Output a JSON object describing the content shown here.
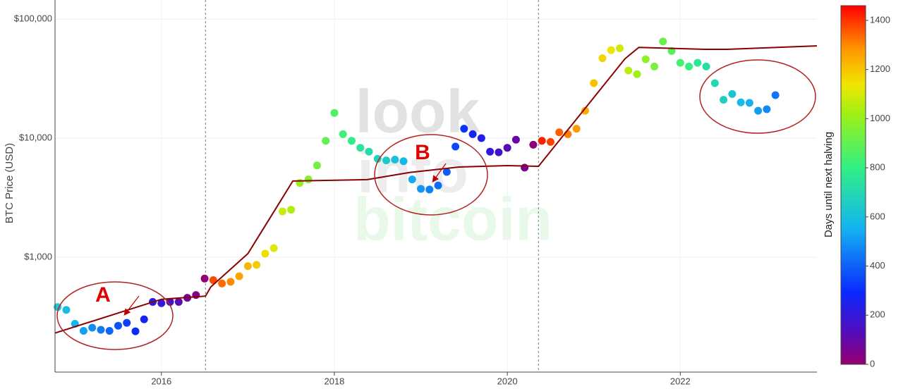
{
  "chart_data": {
    "type": "scatter",
    "y_label": "BTC Price (USD)",
    "colorbar_label": "Days until next halving",
    "watermark": [
      "look",
      "into",
      "bitcoin"
    ],
    "annotations": [
      "A",
      "B"
    ],
    "log_y": true,
    "grid": true,
    "xlim": [
      2014.77,
      2023.58
    ],
    "xticks": [
      2016,
      2018,
      2020,
      2022
    ],
    "ylim": [
      108,
      145000
    ],
    "yticks": [
      {
        "value": 1000,
        "label": "$1,000"
      },
      {
        "value": 10000,
        "label": "$10,000"
      },
      {
        "value": 100000,
        "label": "$100,000"
      }
    ],
    "clim": [
      0,
      1460
    ],
    "cticks": [
      0,
      200,
      400,
      600,
      800,
      1000,
      1200,
      1400
    ],
    "colorscale": [
      [
        0,
        "#96006e"
      ],
      [
        0.08,
        "#5a0ab4"
      ],
      [
        0.2,
        "#0a28ff"
      ],
      [
        0.38,
        "#14b4f0"
      ],
      [
        0.55,
        "#32f082"
      ],
      [
        0.7,
        "#a0f014"
      ],
      [
        0.78,
        "#f0e600"
      ],
      [
        0.88,
        "#ff9600"
      ],
      [
        1,
        "#ff0000"
      ]
    ],
    "halvings": [
      2016.51,
      2020.36
    ],
    "x": [
      2014.8,
      2014.9,
      2015.0,
      2015.1,
      2015.2,
      2015.3,
      2015.4,
      2015.5,
      2015.6,
      2015.7,
      2015.8,
      2015.9,
      2016.0,
      2016.1,
      2016.2,
      2016.3,
      2016.4,
      2016.5,
      2016.6,
      2016.7,
      2016.8,
      2016.9,
      2017.0,
      2017.1,
      2017.2,
      2017.3,
      2017.4,
      2017.5,
      2017.6,
      2017.7,
      2017.8,
      2017.9,
      2018.0,
      2018.1,
      2018.2,
      2018.3,
      2018.4,
      2018.5,
      2018.6,
      2018.7,
      2018.8,
      2018.9,
      2019.0,
      2019.1,
      2019.2,
      2019.3,
      2019.4,
      2019.5,
      2019.6,
      2019.7,
      2019.8,
      2019.9,
      2020.0,
      2020.1,
      2020.2,
      2020.3,
      2020.4,
      2020.5,
      2020.6,
      2020.7,
      2020.8,
      2020.9,
      2021.0,
      2021.1,
      2021.2,
      2021.3,
      2021.4,
      2021.5,
      2021.6,
      2021.7,
      2021.8,
      2021.9,
      2022.0,
      2022.1,
      2022.2,
      2022.3,
      2022.4,
      2022.5,
      2022.6,
      2022.7,
      2022.8,
      2022.9,
      2023.0,
      2023.1
    ],
    "values": [
      380,
      360,
      275,
      240,
      255,
      245,
      240,
      265,
      280,
      238,
      300,
      420,
      410,
      420,
      420,
      455,
      480,
      660,
      640,
      600,
      620,
      690,
      840,
      860,
      1070,
      1190,
      2420,
      2500,
      4200,
      4500,
      5900,
      9500,
      16300,
      10800,
      9500,
      8300,
      7700,
      6700,
      6500,
      6600,
      6400,
      4500,
      3750,
      3700,
      4000,
      5200,
      8500,
      12000,
      10800,
      10000,
      7700,
      7600,
      8300,
      9700,
      5650,
      8800,
      9500,
      9300,
      11200,
      10800,
      12000,
      17000,
      29000,
      47000,
      55000,
      57000,
      37000,
      34500,
      46000,
      40000,
      65000,
      54000,
      43000,
      40000,
      43000,
      40000,
      29000,
      21000,
      23500,
      20000,
      19800,
      17000,
      17500,
      23000
    ],
    "color_values": [
      628,
      591,
      555,
      518,
      482,
      445,
      409,
      372,
      336,
      299,
      263,
      226,
      190,
      153,
      117,
      80,
      44,
      7,
      1372,
      1336,
      1299,
      1263,
      1226,
      1190,
      1153,
      1117,
      1080,
      1044,
      1007,
      971,
      934,
      898,
      861,
      825,
      788,
      752,
      715,
      679,
      642,
      606,
      569,
      533,
      496,
      460,
      423,
      387,
      350,
      314,
      277,
      241,
      204,
      168,
      131,
      95,
      58,
      22,
      1424,
      1387,
      1351,
      1314,
      1278,
      1241,
      1205,
      1168,
      1132,
      1095,
      1059,
      1022,
      986,
      949,
      913,
      876,
      840,
      803,
      767,
      730,
      694,
      657,
      621,
      584,
      548,
      511,
      475,
      438
    ],
    "line": {
      "color": "#8b0000",
      "x": [
        2014.77,
        2016.0,
        2016.51,
        2016.57,
        2017.0,
        2017.52,
        2018.38,
        2018.87,
        2019.44,
        2020.0,
        2020.36,
        2020.66,
        2021.36,
        2021.52,
        2022.29,
        2022.54,
        2023.58
      ],
      "values": [
        230,
        442,
        470,
        560,
        1070,
        4360,
        4480,
        5140,
        5720,
        5880,
        5800,
        10800,
        46500,
        58000,
        55800,
        55800,
        59700
      ]
    }
  }
}
